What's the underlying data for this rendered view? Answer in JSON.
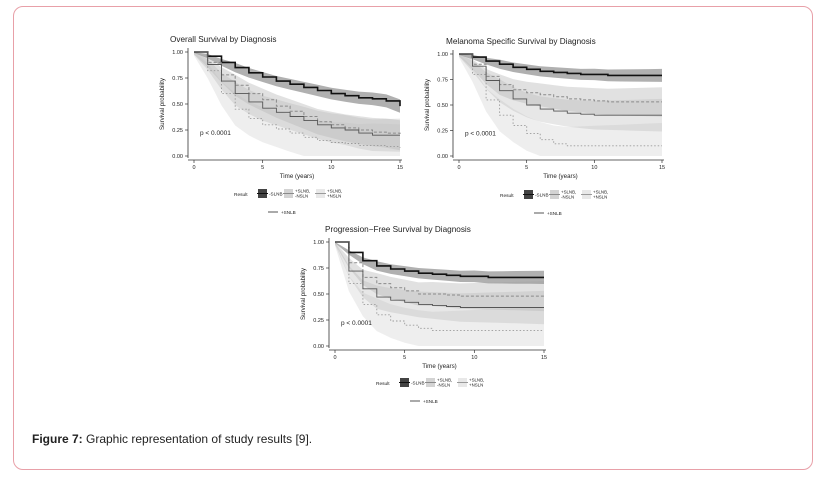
{
  "caption": {
    "label": "Figure 7:",
    "text": " Graphic representation of study results [9]."
  },
  "chart_data": [
    {
      "type": "line",
      "title": "Overall Survival by Diagnosis",
      "xlabel": "Time (years)",
      "ylabel": "Survival probability",
      "xlim": [
        0,
        15
      ],
      "ylim": [
        0,
        1
      ],
      "xticks": [
        "0",
        "5",
        "10",
        "15"
      ],
      "yticks": [
        "0.00",
        "0.25",
        "0.50",
        "0.75",
        "1.00"
      ],
      "pvalue": "p < 0.0001",
      "legend_title": "Result",
      "legend": [
        "-SLNB",
        "+SLNB, -NSLN",
        "+SLNB, +NSLN",
        "+SNLB"
      ],
      "series": [
        {
          "name": "-SLNB",
          "x": [
            0,
            1,
            2,
            3,
            4,
            5,
            6,
            7,
            8,
            9,
            10,
            11,
            12,
            13,
            14,
            15
          ],
          "values": [
            1.0,
            0.96,
            0.9,
            0.85,
            0.8,
            0.76,
            0.72,
            0.69,
            0.66,
            0.63,
            0.6,
            0.58,
            0.56,
            0.55,
            0.53,
            0.48
          ]
        },
        {
          "name": "+SLNB, -NSLN",
          "x": [
            0,
            1,
            2,
            3,
            4,
            5,
            6,
            7,
            8,
            9,
            10,
            11,
            12,
            13,
            14,
            15
          ],
          "values": [
            1.0,
            0.9,
            0.78,
            0.68,
            0.6,
            0.54,
            0.48,
            0.43,
            0.38,
            0.33,
            0.3,
            0.27,
            0.25,
            0.23,
            0.22,
            0.2
          ]
        },
        {
          "name": "+SLNB, +NSLN",
          "x": [
            0,
            1,
            2,
            3,
            4,
            5,
            6,
            7,
            8,
            9,
            10,
            11,
            12,
            13,
            14,
            15
          ],
          "values": [
            1.0,
            0.82,
            0.6,
            0.45,
            0.36,
            0.3,
            0.26,
            0.22,
            0.18,
            0.15,
            0.13,
            0.12,
            0.1,
            0.1,
            0.09,
            0.08
          ]
        },
        {
          "name": "+SNLB",
          "x": [
            0,
            1,
            2,
            3,
            4,
            5,
            6,
            7,
            8,
            9,
            10,
            11,
            12,
            13,
            14,
            15
          ],
          "values": [
            1.0,
            0.88,
            0.72,
            0.6,
            0.52,
            0.46,
            0.42,
            0.38,
            0.34,
            0.3,
            0.27,
            0.25,
            0.22,
            0.2,
            0.2,
            0.2
          ]
        }
      ]
    },
    {
      "type": "line",
      "title": "Melanoma Specific Survival by Diagnosis",
      "xlabel": "Time (years)",
      "ylabel": "Survival probability",
      "xlim": [
        0,
        15
      ],
      "ylim": [
        0,
        1
      ],
      "xticks": [
        "0",
        "5",
        "10",
        "15"
      ],
      "yticks": [
        "0.00",
        "0.25",
        "0.50",
        "0.75",
        "1.00"
      ],
      "pvalue": "p < 0.0001",
      "legend_title": "Result",
      "legend": [
        "-SLNB",
        "+SLNB, -NSLN",
        "+SLNB, +NSLN",
        "+SNLB"
      ],
      "series": [
        {
          "name": "-SLNB",
          "x": [
            0,
            1,
            2,
            3,
            4,
            5,
            6,
            7,
            8,
            9,
            10,
            11,
            12,
            13,
            14,
            15
          ],
          "values": [
            1.0,
            0.97,
            0.93,
            0.9,
            0.87,
            0.85,
            0.83,
            0.82,
            0.81,
            0.8,
            0.8,
            0.79,
            0.79,
            0.79,
            0.79,
            0.79
          ]
        },
        {
          "name": "+SLNB, -NSLN",
          "x": [
            0,
            1,
            2,
            3,
            4,
            5,
            6,
            7,
            8,
            9,
            10,
            11,
            12,
            13,
            14,
            15
          ],
          "values": [
            1.0,
            0.9,
            0.78,
            0.7,
            0.65,
            0.62,
            0.6,
            0.58,
            0.56,
            0.55,
            0.54,
            0.53,
            0.53,
            0.53,
            0.53,
            0.53
          ]
        },
        {
          "name": "+SLNB, +NSLN",
          "x": [
            0,
            1,
            2,
            3,
            4,
            5,
            6,
            7,
            8,
            9,
            10,
            11,
            12,
            13,
            14,
            15
          ],
          "values": [
            1.0,
            0.8,
            0.55,
            0.4,
            0.3,
            0.22,
            0.16,
            0.12,
            0.1,
            0.1,
            0.1,
            0.1,
            0.1,
            0.1,
            0.1,
            0.1
          ]
        },
        {
          "name": "+SNLB",
          "x": [
            0,
            1,
            2,
            3,
            4,
            5,
            6,
            7,
            8,
            9,
            10,
            11,
            12,
            13,
            14,
            15
          ],
          "values": [
            1.0,
            0.88,
            0.74,
            0.64,
            0.56,
            0.5,
            0.46,
            0.44,
            0.42,
            0.41,
            0.4,
            0.4,
            0.4,
            0.4,
            0.4,
            0.4
          ]
        }
      ]
    },
    {
      "type": "line",
      "title": "Progression−Free Survival by Diagnosis",
      "xlabel": "Time (years)",
      "ylabel": "Survival probability",
      "xlim": [
        0,
        15
      ],
      "ylim": [
        0,
        1
      ],
      "xticks": [
        "0",
        "5",
        "10",
        "15"
      ],
      "yticks": [
        "0.00",
        "0.25",
        "0.50",
        "0.75",
        "1.00"
      ],
      "pvalue": "p < 0.0001",
      "legend_title": "Result",
      "legend": [
        "-SLNB",
        "+SLNB, -NSLN",
        "+SLNB, +NSLN",
        "+SNLB"
      ],
      "series": [
        {
          "name": "-SLNB",
          "x": [
            0,
            1,
            2,
            3,
            4,
            5,
            6,
            7,
            8,
            9,
            10,
            11,
            12,
            13,
            14,
            15
          ],
          "values": [
            1.0,
            0.9,
            0.82,
            0.77,
            0.74,
            0.72,
            0.7,
            0.69,
            0.68,
            0.67,
            0.67,
            0.66,
            0.66,
            0.66,
            0.66,
            0.66
          ]
        },
        {
          "name": "+SLNB, -NSLN",
          "x": [
            0,
            1,
            2,
            3,
            4,
            5,
            6,
            7,
            8,
            9,
            10,
            11,
            12,
            13,
            14,
            15
          ],
          "values": [
            1.0,
            0.8,
            0.66,
            0.6,
            0.56,
            0.53,
            0.5,
            0.5,
            0.49,
            0.48,
            0.48,
            0.48,
            0.48,
            0.48,
            0.48,
            0.48
          ]
        },
        {
          "name": "+SLNB, +NSLN",
          "x": [
            0,
            1,
            2,
            3,
            4,
            5,
            6,
            7,
            8,
            9,
            10,
            11,
            12,
            13,
            14,
            15
          ],
          "values": [
            1.0,
            0.6,
            0.4,
            0.3,
            0.24,
            0.2,
            0.17,
            0.15,
            0.15,
            0.15,
            0.15,
            0.15,
            0.15,
            0.15,
            0.15,
            0.15
          ]
        },
        {
          "name": "+SNLB",
          "x": [
            0,
            1,
            2,
            3,
            4,
            5,
            6,
            7,
            8,
            9,
            10,
            11,
            12,
            13,
            14,
            15
          ],
          "values": [
            1.0,
            0.72,
            0.55,
            0.47,
            0.44,
            0.42,
            0.4,
            0.39,
            0.38,
            0.37,
            0.37,
            0.37,
            0.37,
            0.37,
            0.37,
            0.37
          ]
        }
      ]
    }
  ]
}
